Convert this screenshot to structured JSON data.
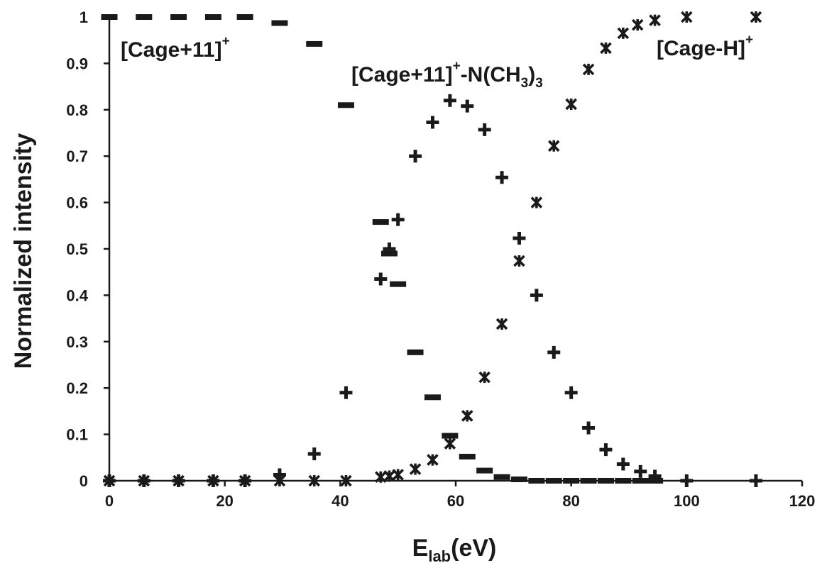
{
  "chart_data": {
    "type": "scatter",
    "title": "",
    "xlabel": {
      "main": "E",
      "sub": "lab",
      "unit": "(eV)"
    },
    "ylabel": "Normalized intensity",
    "xlim": [
      0,
      120
    ],
    "ylim": [
      0,
      1
    ],
    "x_ticks": [
      "0",
      "20",
      "40",
      "60",
      "80",
      "100",
      "120"
    ],
    "y_ticks": [
      "0",
      "0.1",
      "0.2",
      "0.3",
      "0.4",
      "0.5",
      "0.6",
      "0.7",
      "0.8",
      "0.9",
      "1"
    ],
    "grid": false,
    "legend": "none",
    "series": [
      {
        "name": "[Cage+11]+",
        "marker": "dash",
        "labels": {
          "main": "[Cage+11]",
          "sup": "+"
        },
        "points": [
          [
            0,
            1.0
          ],
          [
            6,
            1.0
          ],
          [
            12,
            1.0
          ],
          [
            18,
            1.0
          ],
          [
            23.5,
            1.0
          ],
          [
            29.5,
            0.987
          ],
          [
            35.5,
            0.942
          ],
          [
            41,
            0.81
          ],
          [
            47,
            0.558
          ],
          [
            48.5,
            0.49
          ],
          [
            50,
            0.424
          ],
          [
            53,
            0.277
          ],
          [
            56,
            0.18
          ],
          [
            59,
            0.097
          ],
          [
            62,
            0.052
          ],
          [
            65,
            0.022
          ],
          [
            68,
            0.008
          ],
          [
            71,
            0.003
          ],
          [
            74,
            0.0
          ],
          [
            77,
            0.0
          ],
          [
            80,
            0.0
          ],
          [
            83,
            0.0
          ],
          [
            86,
            0.0
          ],
          [
            89,
            0.0
          ],
          [
            92,
            0.0
          ],
          [
            94.5,
            0.0
          ]
        ]
      },
      {
        "name": "[Cage+11]+-N(CH3)3",
        "marker": "plus",
        "labels": {
          "a": "[Cage+11]",
          "b": "+",
          "c": "-N(CH",
          "d": "3",
          "e": ")",
          "f": "3"
        },
        "points": [
          [
            0,
            0.0
          ],
          [
            6,
            0.0
          ],
          [
            12,
            0.0
          ],
          [
            18,
            0.0
          ],
          [
            23.5,
            0.0
          ],
          [
            29.5,
            0.013
          ],
          [
            35.5,
            0.058
          ],
          [
            41,
            0.19
          ],
          [
            47,
            0.435
          ],
          [
            48.5,
            0.5
          ],
          [
            50,
            0.563
          ],
          [
            53,
            0.7
          ],
          [
            56,
            0.773
          ],
          [
            59,
            0.82
          ],
          [
            62,
            0.808
          ],
          [
            65,
            0.757
          ],
          [
            68,
            0.654
          ],
          [
            71,
            0.523
          ],
          [
            74,
            0.4
          ],
          [
            77,
            0.277
          ],
          [
            80,
            0.19
          ],
          [
            83,
            0.114
          ],
          [
            86,
            0.067
          ],
          [
            89,
            0.036
          ],
          [
            92,
            0.02
          ],
          [
            94.5,
            0.01
          ],
          [
            100,
            0.0
          ],
          [
            112,
            0.0
          ]
        ]
      },
      {
        "name": "[Cage-H]+",
        "marker": "asterisk",
        "labels": {
          "main": "[Cage-H]",
          "sup": "+"
        },
        "points": [
          [
            0,
            0.0
          ],
          [
            6,
            0.0
          ],
          [
            12,
            0.0
          ],
          [
            18,
            0.0
          ],
          [
            23.5,
            0.0
          ],
          [
            29.5,
            0.0
          ],
          [
            35.5,
            0.0
          ],
          [
            41,
            0.0
          ],
          [
            47,
            0.008
          ],
          [
            48.5,
            0.01
          ],
          [
            50,
            0.013
          ],
          [
            53,
            0.025
          ],
          [
            56,
            0.045
          ],
          [
            59,
            0.08
          ],
          [
            62,
            0.14
          ],
          [
            65,
            0.223
          ],
          [
            68,
            0.338
          ],
          [
            71,
            0.474
          ],
          [
            74,
            0.6
          ],
          [
            77,
            0.722
          ],
          [
            80,
            0.812
          ],
          [
            83,
            0.887
          ],
          [
            86,
            0.933
          ],
          [
            89,
            0.965
          ],
          [
            91.5,
            0.983
          ],
          [
            94.5,
            0.993
          ],
          [
            100,
            1.0
          ],
          [
            112,
            1.0
          ]
        ]
      }
    ]
  }
}
